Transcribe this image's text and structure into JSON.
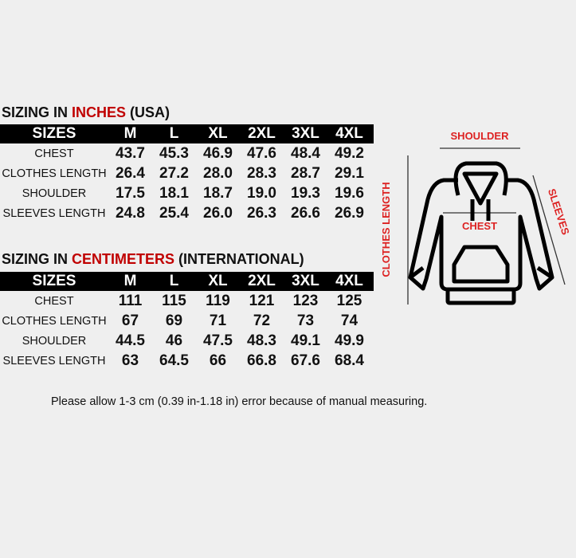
{
  "inches": {
    "title_pre": "SIZING IN ",
    "title_red": "INCHES",
    "title_post": " (USA)",
    "header": [
      "SIZES",
      "M",
      "L",
      "XL",
      "2XL",
      "3XL",
      "4XL"
    ],
    "rows": [
      [
        "CHEST",
        "43.7",
        "45.3",
        "46.9",
        "47.6",
        "48.4",
        "49.2"
      ],
      [
        "CLOTHES LENGTH",
        "26.4",
        "27.2",
        "28.0",
        "28.3",
        "28.7",
        "29.1"
      ],
      [
        "SHOULDER",
        "17.5",
        "18.1",
        "18.7",
        "19.0",
        "19.3",
        "19.6"
      ],
      [
        "SLEEVES LENGTH",
        "24.8",
        "25.4",
        "26.0",
        "26.3",
        "26.6",
        "26.9"
      ]
    ]
  },
  "cm": {
    "title_pre": "SIZING IN ",
    "title_red": "CENTIMETERS",
    "title_post": " (INTERNATIONAL)",
    "header": [
      "SIZES",
      "M",
      "L",
      "XL",
      "2XL",
      "3XL",
      "4XL"
    ],
    "rows": [
      [
        "CHEST",
        "111",
        "115",
        "119",
        "121",
        "123",
        "125"
      ],
      [
        "CLOTHES LENGTH",
        "67",
        "69",
        "71",
        "72",
        "73",
        "74"
      ],
      [
        "SHOULDER",
        "44.5",
        "46",
        "47.5",
        "48.3",
        "49.1",
        "49.9"
      ],
      [
        "SLEEVES LENGTH",
        "63",
        "64.5",
        "66",
        "66.8",
        "67.6",
        "68.4"
      ]
    ]
  },
  "diagram": {
    "shoulder": "SHOULDER",
    "clothes_length": "CLOTHES LENGTH",
    "sleeves": "SLEEVES",
    "chest": "CHEST"
  },
  "note": "Please allow 1-3 cm (0.39 in-1.18 in) error because of manual measuring.",
  "colors": {
    "accent": "#c00000",
    "header_bg": "#000000"
  }
}
